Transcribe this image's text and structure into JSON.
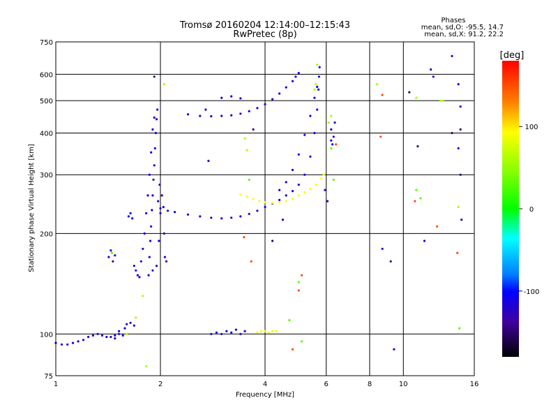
{
  "chart_data": {
    "type": "scatter",
    "title": "Tromsø 20160204 12:14:00–12:15:43",
    "subtitle": "RwPretec (8p)",
    "stats": {
      "heading": "Phases",
      "line_o": "mean, sd,O: -95.5, 14.7",
      "line_x": "mean, sd,X:  91.2, 22.2"
    },
    "xlabel": "Frequency [MHz]",
    "ylabel": "Stationary phase Virtual Height [km]",
    "x_scale": "log",
    "y_scale": "log",
    "xlim": [
      1,
      16
    ],
    "ylim": [
      75,
      750
    ],
    "x_ticks": [
      1,
      2,
      4,
      6,
      8,
      10,
      16
    ],
    "x_tick_labels": [
      "1",
      "2",
      "4",
      "6",
      "8",
      "10",
      "16"
    ],
    "y_ticks": [
      75,
      100,
      200,
      300,
      400,
      500,
      600,
      750
    ],
    "y_tick_labels": [
      "75",
      "100",
      "200",
      "300",
      "400",
      "500",
      "600",
      "750"
    ],
    "grid": true,
    "colorbar": {
      "label": "[deg]",
      "range": [
        -180,
        180
      ],
      "ticks": [
        100,
        0,
        -100
      ],
      "tick_labels": [
        "100",
        "0",
        "-100"
      ]
    },
    "series": [
      {
        "color_value": -110,
        "points": [
          [
            1.0,
            94
          ],
          [
            1.04,
            93
          ],
          [
            1.08,
            93
          ],
          [
            1.12,
            94
          ],
          [
            1.16,
            95
          ],
          [
            1.2,
            96
          ],
          [
            1.24,
            98
          ],
          [
            1.28,
            99
          ],
          [
            1.32,
            100
          ],
          [
            1.36,
            99
          ],
          [
            1.4,
            98
          ],
          [
            1.44,
            98
          ],
          [
            1.48,
            99
          ],
          [
            1.52,
            100
          ],
          [
            1.56,
            99
          ],
          [
            1.58,
            104
          ],
          [
            1.6,
            107
          ],
          [
            1.64,
            108
          ],
          [
            1.68,
            106
          ],
          [
            1.52,
            102
          ],
          [
            1.48,
            97
          ]
        ]
      },
      {
        "color_value": -110,
        "points": [
          [
            1.85,
            150
          ],
          [
            1.86,
            170
          ],
          [
            1.87,
            190
          ],
          [
            1.88,
            210
          ],
          [
            1.89,
            235
          ],
          [
            1.9,
            260
          ],
          [
            1.91,
            290
          ],
          [
            1.92,
            320
          ],
          [
            1.93,
            360
          ],
          [
            1.94,
            400
          ],
          [
            1.95,
            440
          ],
          [
            1.96,
            470
          ],
          [
            1.92,
            445
          ],
          [
            1.9,
            410
          ],
          [
            1.88,
            350
          ],
          [
            1.86,
            300
          ],
          [
            1.84,
            260
          ],
          [
            1.82,
            230
          ],
          [
            1.8,
            200
          ],
          [
            1.78,
            180
          ],
          [
            1.76,
            165
          ],
          [
            1.9,
            155
          ],
          [
            1.95,
            160
          ],
          [
            1.98,
            190
          ],
          [
            2.0,
            230
          ],
          [
            2.02,
            260
          ],
          [
            2.04,
            240
          ],
          [
            2.05,
            200
          ],
          [
            2.06,
            170
          ],
          [
            2.08,
            165
          ],
          [
            1.97,
            250
          ],
          [
            1.99,
            280
          ]
        ]
      },
      {
        "color_value": -110,
        "points": [
          [
            2.0,
            238
          ],
          [
            2.1,
            234
          ],
          [
            2.2,
            232
          ],
          [
            2.4,
            228
          ],
          [
            2.6,
            225
          ],
          [
            2.8,
            223
          ],
          [
            3.0,
            222
          ],
          [
            3.2,
            223
          ],
          [
            3.4,
            225
          ],
          [
            3.6,
            229
          ],
          [
            3.8,
            234
          ],
          [
            4.0,
            240
          ],
          [
            4.2,
            246
          ],
          [
            4.4,
            252
          ],
          [
            4.6,
            260
          ],
          [
            4.8,
            268
          ],
          [
            5.0,
            280
          ],
          [
            5.2,
            300
          ],
          [
            5.4,
            340
          ],
          [
            5.55,
            400
          ],
          [
            5.65,
            470
          ],
          [
            5.7,
            540
          ],
          [
            5.72,
            590
          ],
          [
            5.74,
            630
          ]
        ]
      },
      {
        "color_value": -110,
        "points": [
          [
            2.4,
            455
          ],
          [
            2.6,
            450
          ],
          [
            2.8,
            449
          ],
          [
            3.0,
            450
          ],
          [
            3.2,
            452
          ],
          [
            3.4,
            457
          ],
          [
            3.6,
            465
          ],
          [
            3.8,
            475
          ],
          [
            4.0,
            488
          ],
          [
            4.2,
            505
          ],
          [
            4.4,
            525
          ],
          [
            4.6,
            548
          ],
          [
            4.8,
            572
          ],
          [
            4.9,
            590
          ],
          [
            5.0,
            605
          ]
        ]
      },
      {
        "color_value": -110,
        "points": [
          [
            4.4,
            270
          ],
          [
            4.6,
            285
          ],
          [
            4.8,
            310
          ],
          [
            5.0,
            345
          ],
          [
            5.2,
            395
          ],
          [
            5.4,
            450
          ],
          [
            5.55,
            510
          ],
          [
            5.65,
            550
          ]
        ]
      },
      {
        "color_value": 95,
        "points": [
          [
            3.4,
            262
          ],
          [
            3.55,
            258
          ],
          [
            3.7,
            254
          ],
          [
            3.85,
            250
          ],
          [
            4.0,
            248
          ],
          [
            4.2,
            247
          ],
          [
            4.4,
            248
          ],
          [
            4.6,
            250
          ],
          [
            4.8,
            254
          ],
          [
            5.0,
            260
          ],
          [
            5.2,
            266
          ],
          [
            5.4,
            272
          ],
          [
            5.6,
            280
          ],
          [
            5.8,
            292
          ],
          [
            5.9,
            300
          ]
        ]
      },
      {
        "color_value": -110,
        "points": [
          [
            2.8,
            100
          ],
          [
            2.9,
            101
          ],
          [
            3.0,
            100
          ],
          [
            3.1,
            102
          ],
          [
            3.2,
            101
          ],
          [
            3.3,
            103
          ],
          [
            3.4,
            100
          ],
          [
            3.5,
            102
          ]
        ]
      },
      {
        "color_value": 90,
        "points": [
          [
            3.8,
            101
          ],
          [
            3.9,
            102
          ],
          [
            4.0,
            102
          ],
          [
            4.1,
            101
          ],
          [
            4.2,
            102
          ],
          [
            4.3,
            102
          ]
        ]
      },
      {
        "color_value": -110,
        "points": [
          [
            1.42,
            170
          ],
          [
            1.44,
            178
          ],
          [
            1.46,
            165
          ],
          [
            1.48,
            172
          ],
          [
            1.62,
            225
          ],
          [
            1.64,
            230
          ],
          [
            1.66,
            222
          ],
          [
            1.68,
            160
          ],
          [
            1.7,
            155
          ],
          [
            1.72,
            150
          ],
          [
            1.74,
            148
          ],
          [
            6.2,
            410
          ],
          [
            6.3,
            390
          ],
          [
            6.35,
            430
          ],
          [
            6.25,
            370
          ]
        ]
      },
      {
        "color_value": 60,
        "points": [
          [
            1.6,
            100
          ],
          [
            1.7,
            112
          ],
          [
            1.78,
            130
          ],
          [
            1.82,
            80
          ],
          [
            2.05,
            560
          ],
          [
            3.5,
            385
          ],
          [
            3.55,
            355
          ],
          [
            5.55,
            540
          ],
          [
            5.6,
            560
          ],
          [
            5.65,
            640
          ],
          [
            6.1,
            430
          ],
          [
            6.2,
            450
          ],
          [
            8.4,
            560
          ],
          [
            10.9,
            510
          ],
          [
            12.8,
            500
          ],
          [
            13.0,
            500
          ],
          [
            14.4,
            240
          ]
        ]
      },
      {
        "color_value": 30,
        "points": [
          [
            1.45,
            175
          ],
          [
            3.6,
            290
          ],
          [
            4.7,
            110
          ],
          [
            5.0,
            143
          ],
          [
            5.1,
            95
          ],
          [
            6.2,
            360
          ],
          [
            6.3,
            290
          ],
          [
            10.9,
            270
          ],
          [
            11.2,
            255
          ],
          [
            14.5,
            104
          ]
        ]
      },
      {
        "color_value": 150,
        "points": [
          [
            3.48,
            195
          ],
          [
            3.65,
            165
          ],
          [
            4.8,
            90
          ],
          [
            5.0,
            135
          ],
          [
            5.1,
            150
          ],
          [
            6.4,
            370
          ],
          [
            8.6,
            390
          ],
          [
            10.8,
            250
          ],
          [
            12.5,
            210
          ],
          [
            14.3,
            175
          ],
          [
            8.7,
            520
          ]
        ]
      },
      {
        "color_value": -110,
        "points": [
          [
            2.7,
            470
          ],
          [
            2.75,
            330
          ],
          [
            3.0,
            510
          ],
          [
            3.2,
            515
          ],
          [
            3.4,
            508
          ],
          [
            4.5,
            220
          ],
          [
            5.95,
            270
          ],
          [
            6.05,
            250
          ],
          [
            6.2,
            380
          ],
          [
            8.7,
            180
          ],
          [
            9.4,
            90
          ],
          [
            11.5,
            190
          ],
          [
            12.0,
            620
          ],
          [
            12.2,
            590
          ],
          [
            13.8,
            680
          ],
          [
            14.4,
            560
          ],
          [
            14.6,
            480
          ],
          [
            14.4,
            360
          ],
          [
            14.7,
            220
          ]
        ]
      },
      {
        "color_value": -140,
        "points": [
          [
            1.92,
            590
          ],
          [
            3.7,
            410
          ],
          [
            4.2,
            190
          ],
          [
            9.2,
            165
          ],
          [
            10.4,
            530
          ],
          [
            11.0,
            365
          ],
          [
            13.8,
            400
          ],
          [
            14.6,
            410
          ],
          [
            14.6,
            300
          ]
        ]
      }
    ]
  }
}
